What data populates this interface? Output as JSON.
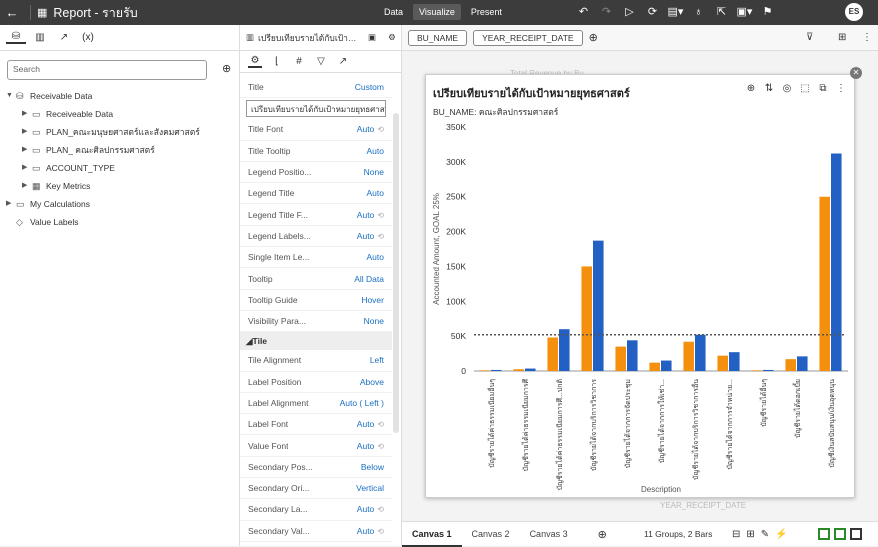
{
  "app": {
    "title": "Report - รายรับ"
  },
  "nav": {
    "data": "Data",
    "visualize": "Visualize",
    "present": "Present"
  },
  "user": {
    "initials": "ES"
  },
  "left": {
    "search_placeholder": "Search",
    "tree": [
      {
        "label": "Receivable Data",
        "level": 0,
        "expanded": true,
        "icon": "database-icon"
      },
      {
        "label": "Receiveable Data",
        "level": 1,
        "icon": "folder-icon"
      },
      {
        "label": "PLAN_คณะมนุษยศาสตร์และสังคมศาสตร์",
        "level": 1,
        "icon": "folder-icon"
      },
      {
        "label": "PLAN_ คณะศิลปกรรมศาสตร์",
        "level": 1,
        "icon": "folder-icon"
      },
      {
        "label": "ACCOUNT_TYPE",
        "level": 1,
        "icon": "folder-icon"
      },
      {
        "label": "Key Metrics",
        "level": 1,
        "icon": "metrics-icon"
      },
      {
        "label": "My Calculations",
        "level": 0,
        "icon": "folder-icon"
      },
      {
        "label": "Value Labels",
        "level": 0,
        "icon": "tag-icon"
      }
    ]
  },
  "props": {
    "viz_name": "เปรียบเทียบรายได้กับเป้าหมายยุทธศ...",
    "title_value": "เปรียบเทียบรายได้กับเป้าหมายยุทธศาสตร์",
    "rows_a": [
      {
        "k": "Title",
        "v": "Custom"
      }
    ],
    "rows_b": [
      {
        "k": "Title Font",
        "v": "Auto",
        "reset": true
      },
      {
        "k": "Title Tooltip",
        "v": "Auto"
      },
      {
        "k": "Legend Positio...",
        "v": "None"
      },
      {
        "k": "Legend Title",
        "v": "Auto"
      },
      {
        "k": "Legend Title F...",
        "v": "Auto",
        "reset": true
      },
      {
        "k": "Legend Labels...",
        "v": "Auto",
        "reset": true
      },
      {
        "k": "Single Item Le...",
        "v": "Auto"
      },
      {
        "k": "Tooltip",
        "v": "All Data"
      },
      {
        "k": "Tooltip Guide",
        "v": "Hover"
      },
      {
        "k": "Visibility Para...",
        "v": "None"
      }
    ],
    "section": "Tile",
    "rows_c": [
      {
        "k": "Tile Alignment",
        "v": "Left"
      },
      {
        "k": "Label Position",
        "v": "Above"
      },
      {
        "k": "Label Alignment",
        "v": "Auto ( Left )"
      },
      {
        "k": "Label Font",
        "v": "Auto",
        "reset": true
      },
      {
        "k": "Value Font",
        "v": "Auto",
        "reset": true
      },
      {
        "k": "Secondary Pos...",
        "v": "Below"
      },
      {
        "k": "Secondary Ori...",
        "v": "Vertical"
      },
      {
        "k": "Secondary La...",
        "v": "Auto",
        "reset": true
      },
      {
        "k": "Secondary Val...",
        "v": "Auto",
        "reset": true
      }
    ]
  },
  "filters": {
    "pills": [
      "BU_NAME",
      "YEAR_RECEIPT_DATE"
    ]
  },
  "ghost": {
    "t1": "Total Revenue by Bu...",
    "t2": "YEAR_RECEIPT_DATE"
  },
  "card": {
    "title": "เปรียบเทียบรายได้กับเป้าหมายยุทธศาสตร์",
    "subtitle": "BU_NAME: คณะศิลปกรรมศาสตร์"
  },
  "chart_data": {
    "type": "bar",
    "xlabel": "Description",
    "ylabel": "Accounted Amount, GOAL 25%",
    "ylim": [
      0,
      350000
    ],
    "ticks": [
      "0",
      "50K",
      "100K",
      "150K",
      "200K",
      "250K",
      "300K",
      "350K"
    ],
    "reference_line": 52000,
    "colors": [
      "#f5900e",
      "#2360c4"
    ],
    "categories": [
      "บัญชีรายได้ค่าธรรมเนียมอื่นๆ",
      "บัญชีรายได้ค่าธรรมเนียมการศึ",
      "บัญชีรายได้ค่าธรรมเนียมการศึ...ปกติ",
      "บัญชีรายได้จากบริการวิชาการ",
      "บัญชีรายได้จากการจัดประชุม",
      "บัญชีรายได้จากการให้เช่า...",
      "บัญชีรายได้จากบริการวิชาการอื่น",
      "บัญชีรายได้จากการจำหน่าย...",
      "บัญชีรายได้อื่นๆ",
      "บัญชีรายได้ดอกเบี้ย",
      "บัญชีเงินสนับสนุน/เงินอุดหนุน"
    ],
    "series": [
      {
        "values": [
          1000,
          2500,
          48000,
          150000,
          35000,
          12000,
          42000,
          22000,
          1000,
          17000,
          250000
        ]
      },
      {
        "values": [
          1500,
          3500,
          60000,
          187000,
          44000,
          15000,
          52000,
          27000,
          1500,
          21000,
          312000
        ]
      }
    ]
  },
  "bottom": {
    "tabs": [
      "Canvas 1",
      "Canvas 2",
      "Canvas 3"
    ],
    "status": "11 Groups, 2 Bars"
  }
}
